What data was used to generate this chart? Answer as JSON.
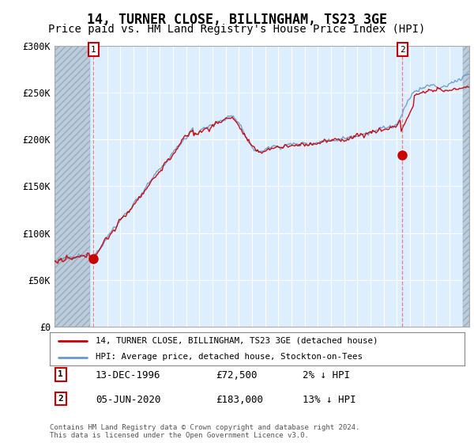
{
  "title": "14, TURNER CLOSE, BILLINGHAM, TS23 3GE",
  "subtitle": "Price paid vs. HM Land Registry's House Price Index (HPI)",
  "ylabel_ticks": [
    "£0",
    "£50K",
    "£100K",
    "£150K",
    "£200K",
    "£250K",
    "£300K"
  ],
  "ytick_values": [
    0,
    50000,
    100000,
    150000,
    200000,
    250000,
    300000
  ],
  "ylim": [
    0,
    300000
  ],
  "xlim_start": 1994.0,
  "xlim_end": 2025.5,
  "hatch_end_year": 1996.7,
  "hatch_start_year2": 2025.0,
  "sale1_year": 1996.96,
  "sale1_price": 72500,
  "sale1_label": "1",
  "sale2_year": 2020.42,
  "sale2_price": 183000,
  "sale2_label": "2",
  "legend_line1": "14, TURNER CLOSE, BILLINGHAM, TS23 3GE (detached house)",
  "legend_line2": "HPI: Average price, detached house, Stockton-on-Tees",
  "line_color_red": "#cc0000",
  "line_color_blue": "#6699cc",
  "plot_bg_color": "#ddeeff",
  "hatch_color": "#bbccdd",
  "grid_color": "#ffffff",
  "sale_marker_color": "#cc0000",
  "title_fontsize": 12,
  "subtitle_fontsize": 10,
  "footer": "Contains HM Land Registry data © Crown copyright and database right 2024.\nThis data is licensed under the Open Government Licence v3.0."
}
